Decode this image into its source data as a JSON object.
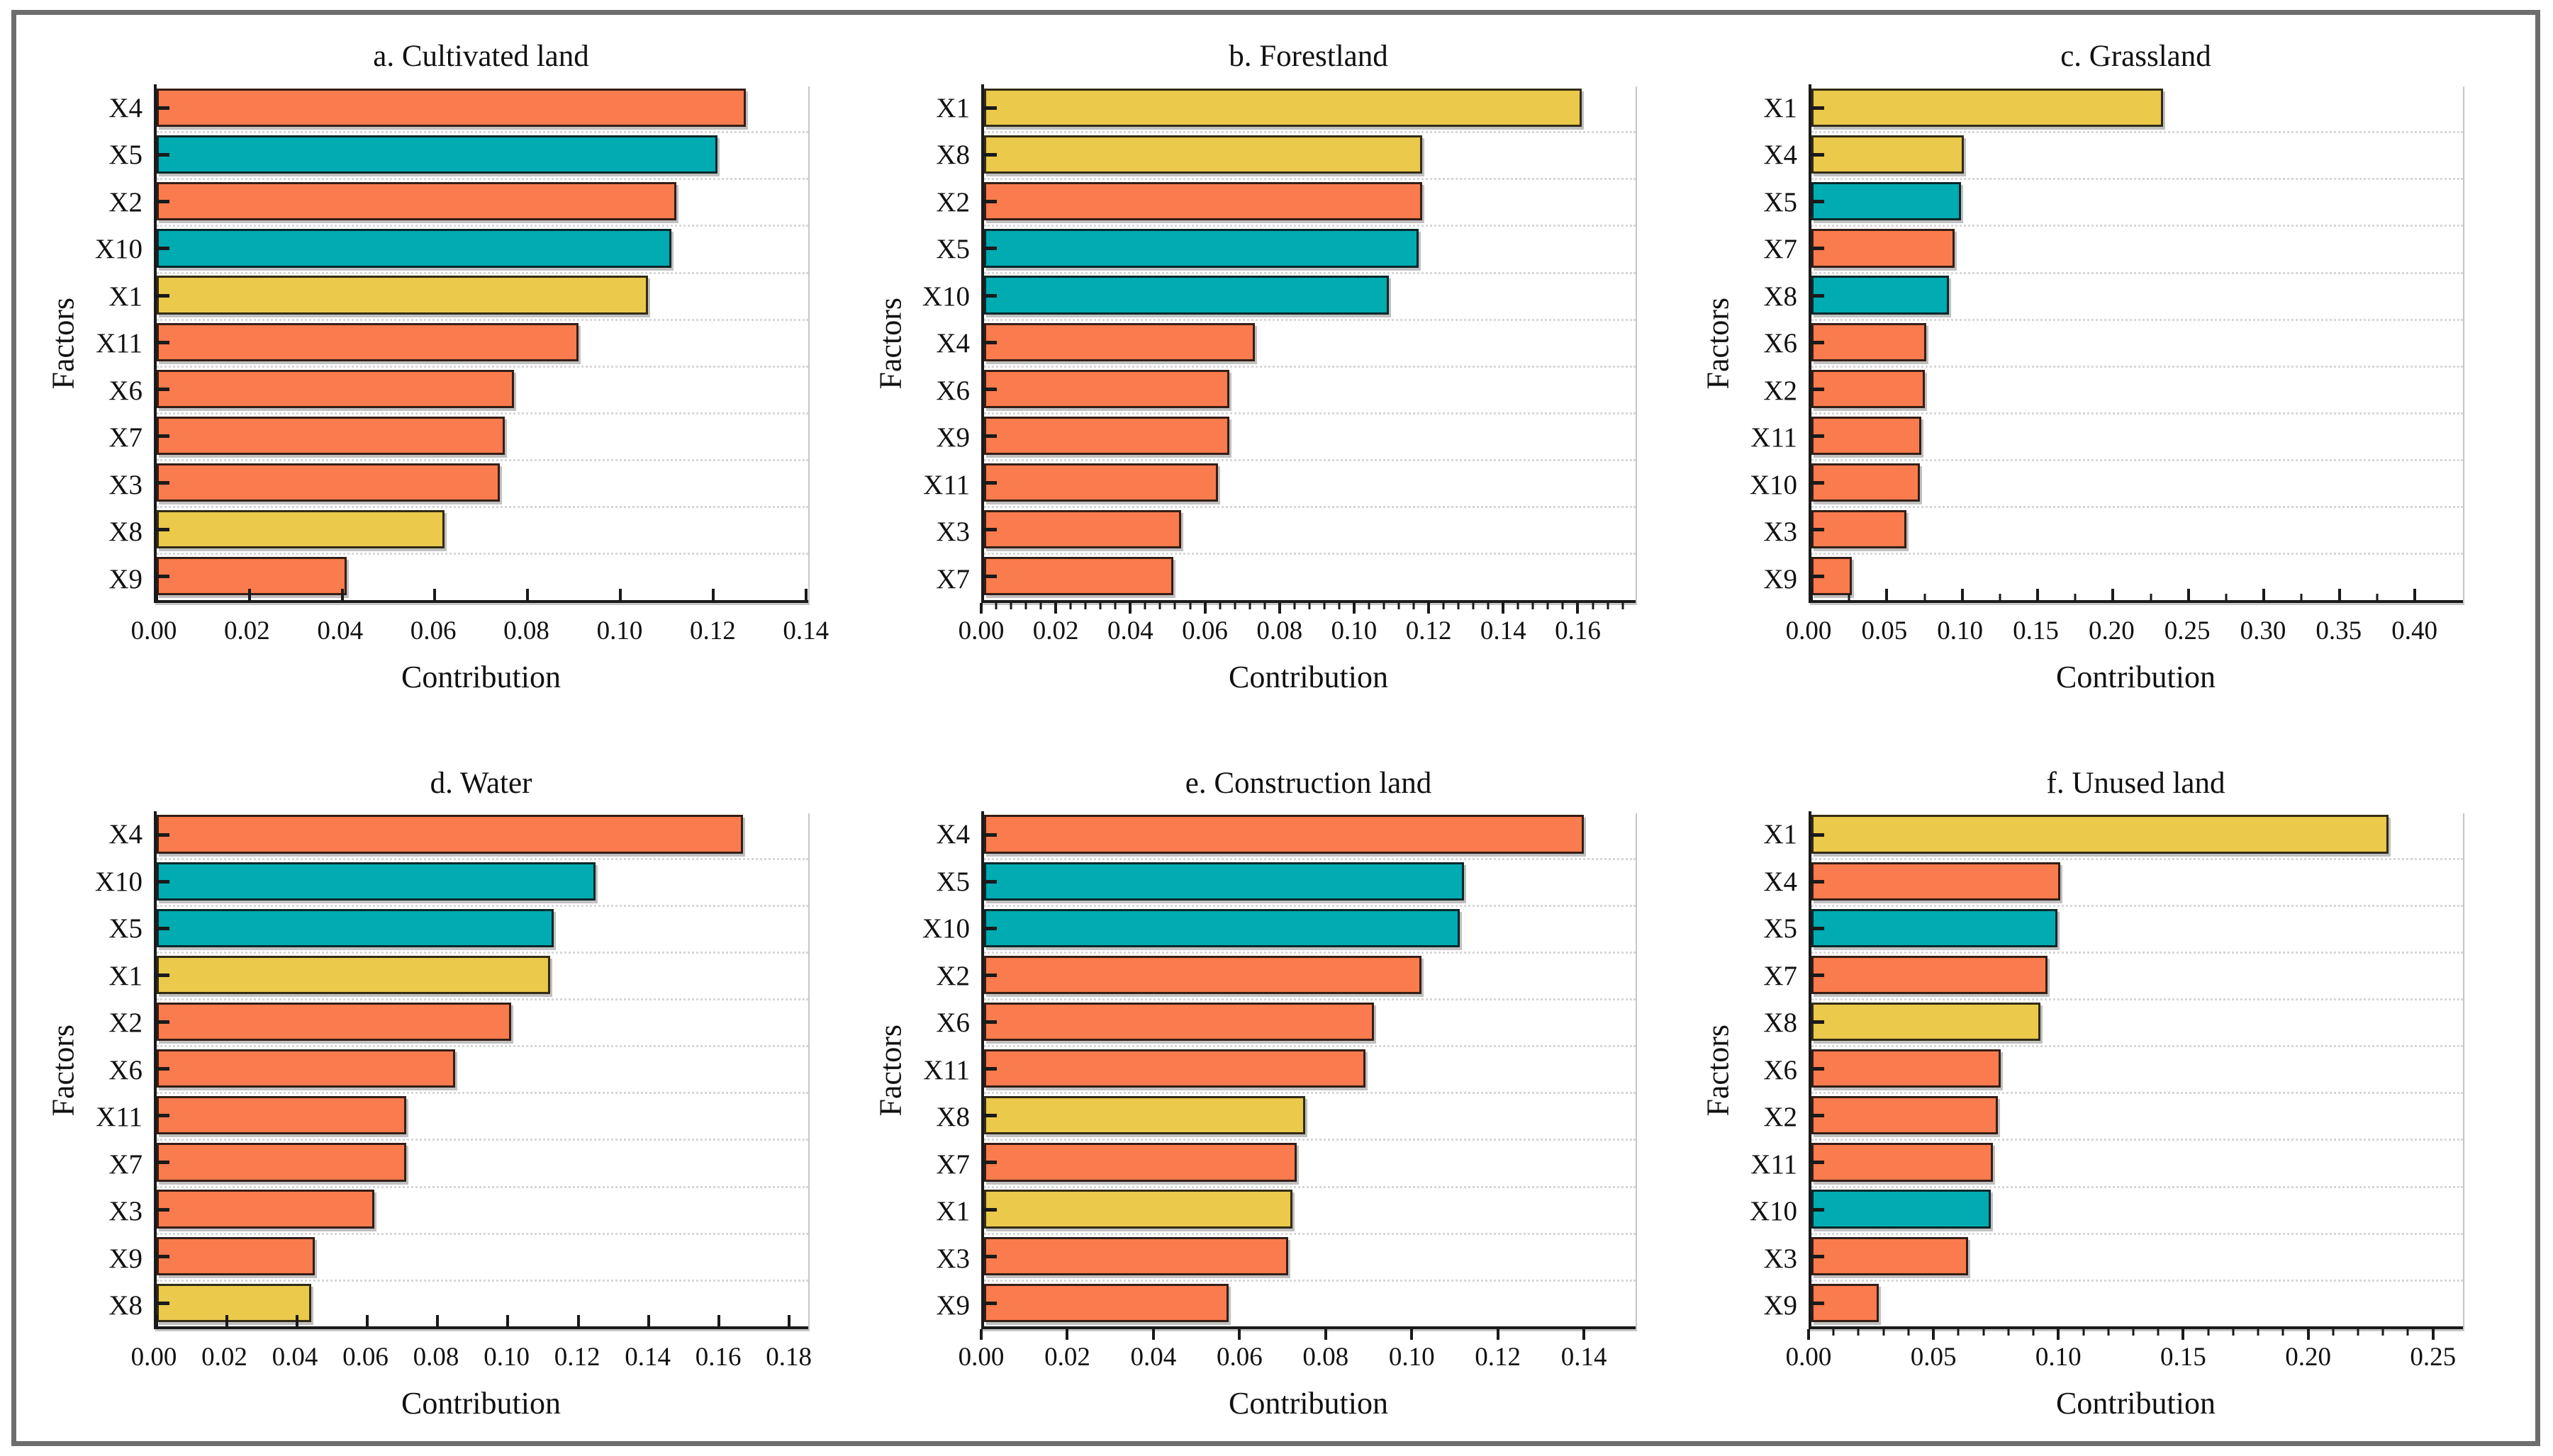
{
  "figure": {
    "background": "#ffffff",
    "frame_color": "#6d6d6d"
  },
  "palette": {
    "orange": "#FA7B4D",
    "teal": "#00ABB2",
    "yellow": "#EAC94B",
    "bar_border": "#1a1a1a",
    "axis": "#1a1a1a",
    "gridline": "#d7d7d7"
  },
  "chart_data": [
    {
      "type": "bar",
      "orientation": "horizontal",
      "panel_id": "a",
      "title": "a. Cultivated land",
      "xlabel": "Contribution",
      "ylabel": "Factors",
      "categories": [
        "X4",
        "X5",
        "X2",
        "X10",
        "X1",
        "X11",
        "X6",
        "X7",
        "X3",
        "X8",
        "X9"
      ],
      "values": [
        0.127,
        0.121,
        0.112,
        0.111,
        0.106,
        0.091,
        0.077,
        0.075,
        0.074,
        0.062,
        0.041
      ],
      "colors": [
        "orange",
        "teal",
        "orange",
        "teal",
        "yellow",
        "orange",
        "orange",
        "orange",
        "orange",
        "yellow",
        "orange"
      ],
      "xlim": [
        0,
        0.1405
      ],
      "xtick_values": [
        0,
        0.02,
        0.04,
        0.06,
        0.08,
        0.1,
        0.12,
        0.14
      ],
      "xtick_labels": [
        "0.00",
        "0.02",
        "0.04",
        "0.06",
        "0.08",
        "0.10",
        "0.12",
        "0.14"
      ],
      "minor_tick_step": null,
      "tick_side": "in",
      "grid": "dotted-horizontal"
    },
    {
      "type": "bar",
      "orientation": "horizontal",
      "panel_id": "b",
      "title": "b. Forestland",
      "xlabel": "Contribution",
      "ylabel": "Factors",
      "categories": [
        "X1",
        "X8",
        "X2",
        "X5",
        "X10",
        "X4",
        "X6",
        "X9",
        "X11",
        "X3",
        "X7"
      ],
      "values": [
        0.161,
        0.118,
        0.118,
        0.117,
        0.109,
        0.073,
        0.066,
        0.066,
        0.063,
        0.053,
        0.051
      ],
      "colors": [
        "yellow",
        "yellow",
        "orange",
        "teal",
        "teal",
        "orange",
        "orange",
        "orange",
        "orange",
        "orange",
        "orange"
      ],
      "xlim": [
        0,
        0.1755
      ],
      "xtick_values": [
        0,
        0.02,
        0.04,
        0.06,
        0.08,
        0.1,
        0.12,
        0.14,
        0.16
      ],
      "xtick_labels": [
        "0.00",
        "0.02",
        "0.04",
        "0.06",
        "0.08",
        "0.10",
        "0.12",
        "0.14",
        "0.16"
      ],
      "minor_tick_step": 0.004,
      "tick_side": "out",
      "grid": "dotted-horizontal"
    },
    {
      "type": "bar",
      "orientation": "horizontal",
      "panel_id": "c",
      "title": "c. Grassland",
      "xlabel": "Contribution",
      "ylabel": "Factors",
      "categories": [
        "X1",
        "X4",
        "X5",
        "X7",
        "X8",
        "X6",
        "X2",
        "X11",
        "X10",
        "X3",
        "X9"
      ],
      "values": [
        0.233,
        0.101,
        0.099,
        0.095,
        0.091,
        0.076,
        0.075,
        0.073,
        0.072,
        0.063,
        0.027
      ],
      "colors": [
        "yellow",
        "yellow",
        "teal",
        "orange",
        "teal",
        "orange",
        "orange",
        "orange",
        "orange",
        "orange",
        "orange"
      ],
      "xlim": [
        0,
        0.432
      ],
      "xtick_values": [
        0,
        0.05,
        0.1,
        0.15,
        0.2,
        0.25,
        0.3,
        0.35,
        0.4
      ],
      "xtick_labels": [
        "0.00",
        "0.05",
        "0.10",
        "0.15",
        "0.20",
        "0.25",
        "0.30",
        "0.35",
        "0.40"
      ],
      "minor_tick_step": 0.025,
      "tick_side": "in",
      "grid": "dotted-horizontal"
    },
    {
      "type": "bar",
      "orientation": "horizontal",
      "panel_id": "d",
      "title": "d. Water",
      "xlabel": "Contribution",
      "ylabel": "Factors",
      "categories": [
        "X4",
        "X10",
        "X5",
        "X1",
        "X2",
        "X6",
        "X11",
        "X7",
        "X3",
        "X9",
        "X8"
      ],
      "values": [
        0.167,
        0.125,
        0.113,
        0.112,
        0.101,
        0.085,
        0.071,
        0.071,
        0.062,
        0.045,
        0.044
      ],
      "colors": [
        "orange",
        "teal",
        "teal",
        "yellow",
        "orange",
        "orange",
        "orange",
        "orange",
        "orange",
        "orange",
        "yellow"
      ],
      "xlim": [
        0,
        0.1855
      ],
      "xtick_values": [
        0,
        0.02,
        0.04,
        0.06,
        0.08,
        0.1,
        0.12,
        0.14,
        0.16,
        0.18
      ],
      "xtick_labels": [
        "0.00",
        "0.02",
        "0.04",
        "0.06",
        "0.08",
        "0.10",
        "0.12",
        "0.14",
        "0.16",
        "0.18"
      ],
      "minor_tick_step": null,
      "tick_side": "in",
      "grid": "dotted-horizontal"
    },
    {
      "type": "bar",
      "orientation": "horizontal",
      "panel_id": "e",
      "title": "e. Construction land",
      "xlabel": "Contribution",
      "ylabel": "Factors",
      "categories": [
        "X4",
        "X5",
        "X10",
        "X2",
        "X6",
        "X11",
        "X8",
        "X7",
        "X1",
        "X3",
        "X9"
      ],
      "values": [
        0.14,
        0.112,
        0.111,
        0.102,
        0.091,
        0.089,
        0.075,
        0.073,
        0.072,
        0.071,
        0.057
      ],
      "colors": [
        "orange",
        "teal",
        "teal",
        "orange",
        "orange",
        "orange",
        "yellow",
        "orange",
        "yellow",
        "orange",
        "orange"
      ],
      "xlim": [
        0,
        0.152
      ],
      "xtick_values": [
        0,
        0.02,
        0.04,
        0.06,
        0.08,
        0.1,
        0.12,
        0.14
      ],
      "xtick_labels": [
        "0.00",
        "0.02",
        "0.04",
        "0.06",
        "0.08",
        "0.10",
        "0.12",
        "0.14"
      ],
      "minor_tick_step": null,
      "tick_side": "out",
      "grid": "dotted-horizontal"
    },
    {
      "type": "bar",
      "orientation": "horizontal",
      "panel_id": "f",
      "title": "f. Unused land",
      "xlabel": "Contribution",
      "ylabel": "Factors",
      "categories": [
        "X1",
        "X4",
        "X5",
        "X7",
        "X8",
        "X6",
        "X2",
        "X11",
        "X10",
        "X3",
        "X9"
      ],
      "values": [
        0.232,
        0.1,
        0.099,
        0.095,
        0.092,
        0.076,
        0.075,
        0.073,
        0.072,
        0.063,
        0.027
      ],
      "colors": [
        "yellow",
        "orange",
        "teal",
        "orange",
        "yellow",
        "orange",
        "orange",
        "orange",
        "teal",
        "orange",
        "orange"
      ],
      "xlim": [
        0,
        0.262
      ],
      "xtick_values": [
        0,
        0.05,
        0.1,
        0.15,
        0.2,
        0.25
      ],
      "xtick_labels": [
        "0.00",
        "0.05",
        "0.10",
        "0.15",
        "0.20",
        "0.25"
      ],
      "minor_tick_step": 0.01,
      "tick_side": "out",
      "grid": "dotted-horizontal"
    }
  ]
}
